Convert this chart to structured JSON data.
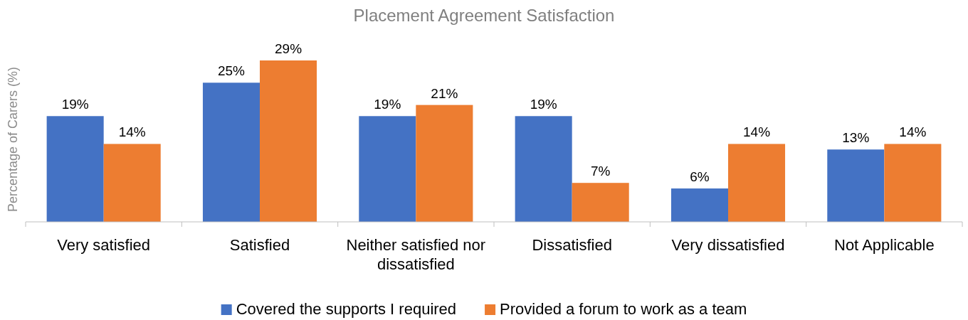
{
  "chart_data": {
    "type": "bar",
    "title": "Placement Agreement Satisfaction",
    "ylabel": "Percentage of Carers (%)",
    "categories": [
      "Very satisfied",
      "Satisfied",
      "Neither satisfied nor dissatisfied",
      "Dissatisfied",
      "Very dissatisfied",
      "Not Applicable"
    ],
    "series": [
      {
        "name": "Covered the supports I required",
        "color": "#4472c4",
        "values": [
          19,
          25,
          19,
          19,
          6,
          13
        ],
        "value_labels": [
          "19%",
          "25%",
          "19%",
          "19%",
          "6%",
          "13%"
        ]
      },
      {
        "name": "Provided a forum to work as a team",
        "color": "#ed7d31",
        "values": [
          14,
          29,
          21,
          7,
          14,
          14
        ],
        "value_labels": [
          "14%",
          "29%",
          "21%",
          "7%",
          "14%",
          "14%"
        ]
      }
    ],
    "legend": "bottom",
    "grid": false
  }
}
